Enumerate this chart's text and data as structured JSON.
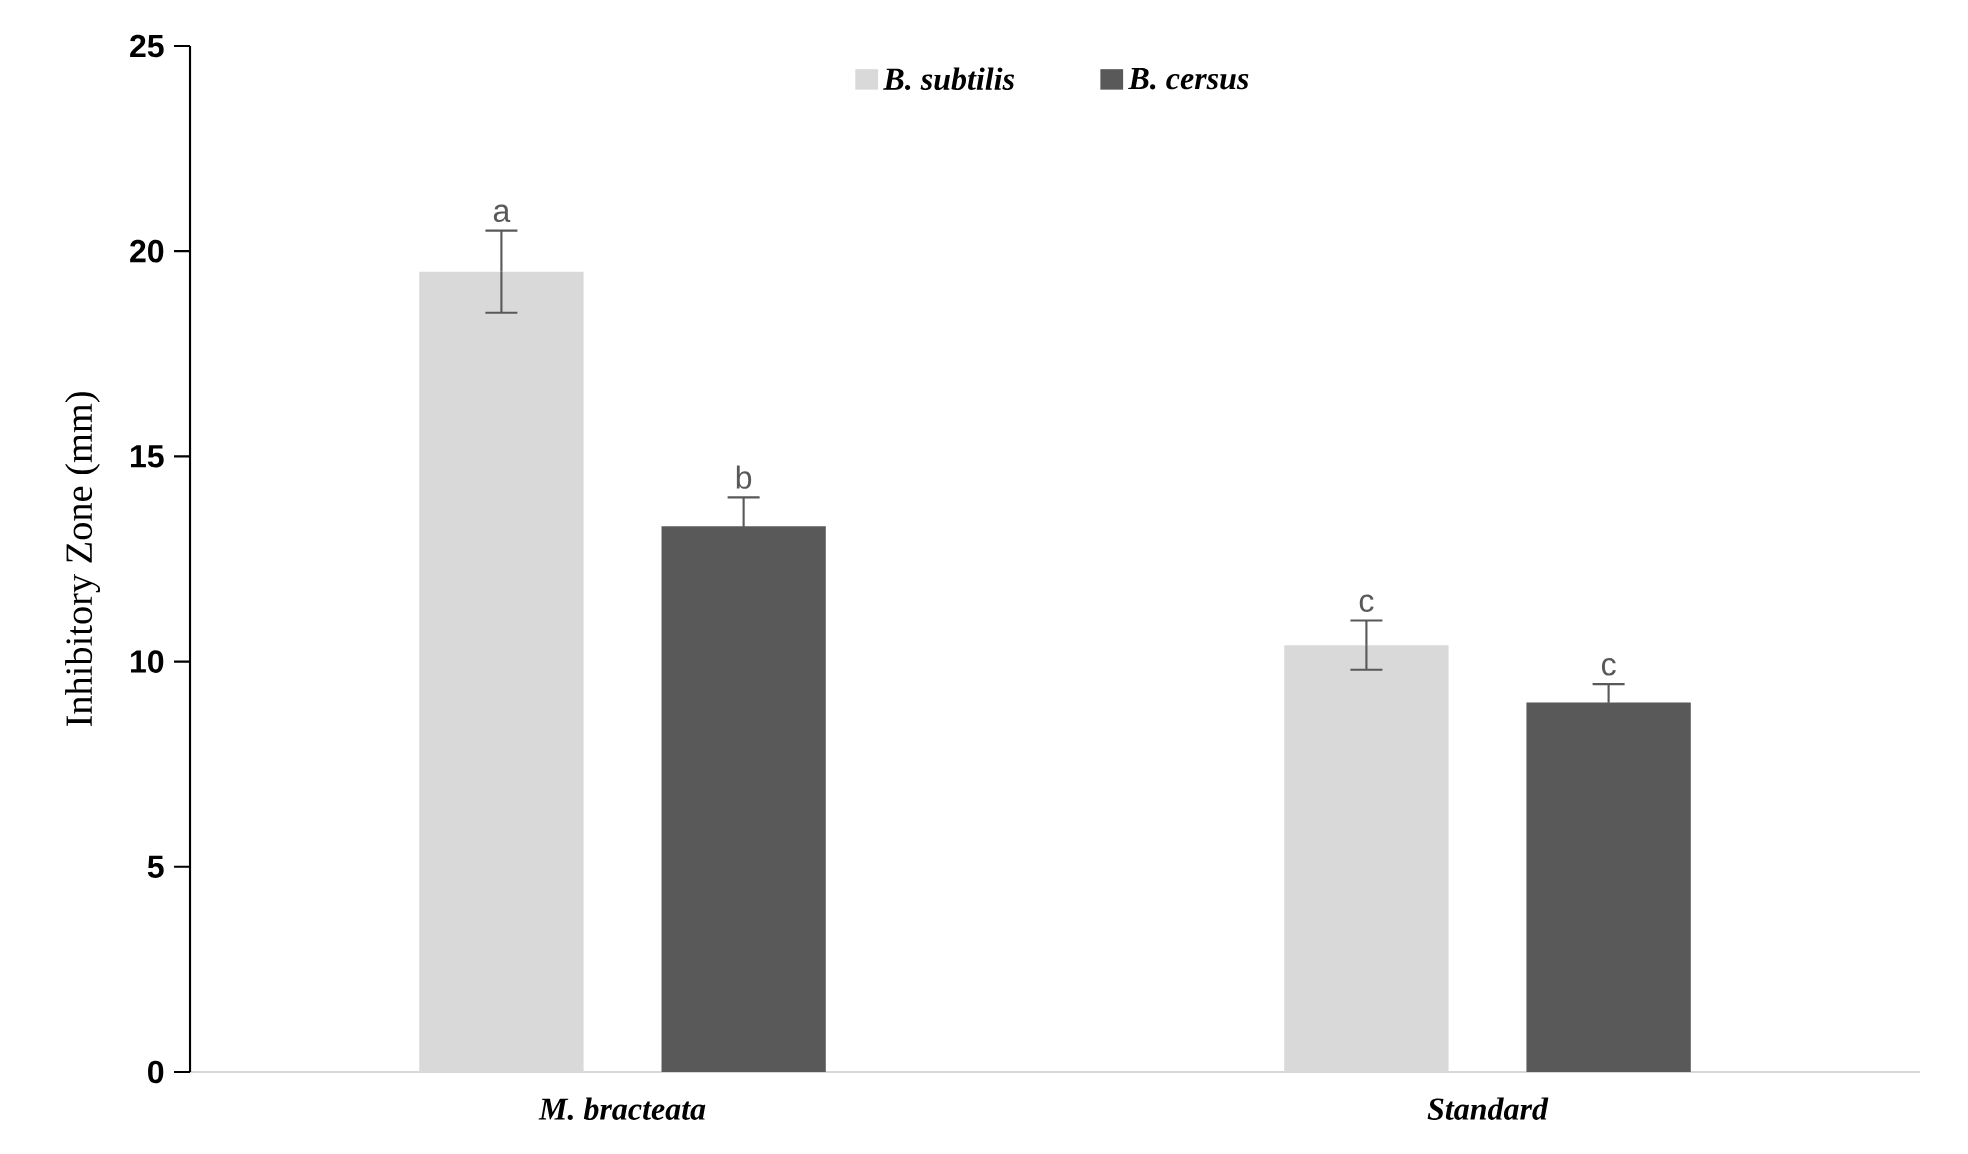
{
  "chart_data": {
    "type": "bar",
    "ylabel": "Inhibitory Zone (mm)",
    "categories": [
      "*M. bracteata*",
      "*Standard*"
    ],
    "series": [
      {
        "name": "B. subtilis",
        "color": "#d9d9d9",
        "values": [
          19.5,
          10.4
        ],
        "errors": [
          1.0,
          0.6
        ],
        "value_labels": [
          "a",
          "c"
        ]
      },
      {
        "name": "B. cersus",
        "color": "#595959",
        "values": [
          13.3,
          9.0
        ],
        "errors": [
          0.7,
          0.45
        ],
        "value_labels": [
          "b",
          "c"
        ]
      }
    ],
    "ylim": [
      0,
      25
    ],
    "yticks": [
      0,
      5,
      10,
      15,
      20,
      25
    ],
    "legend": "top",
    "grid": false
  }
}
